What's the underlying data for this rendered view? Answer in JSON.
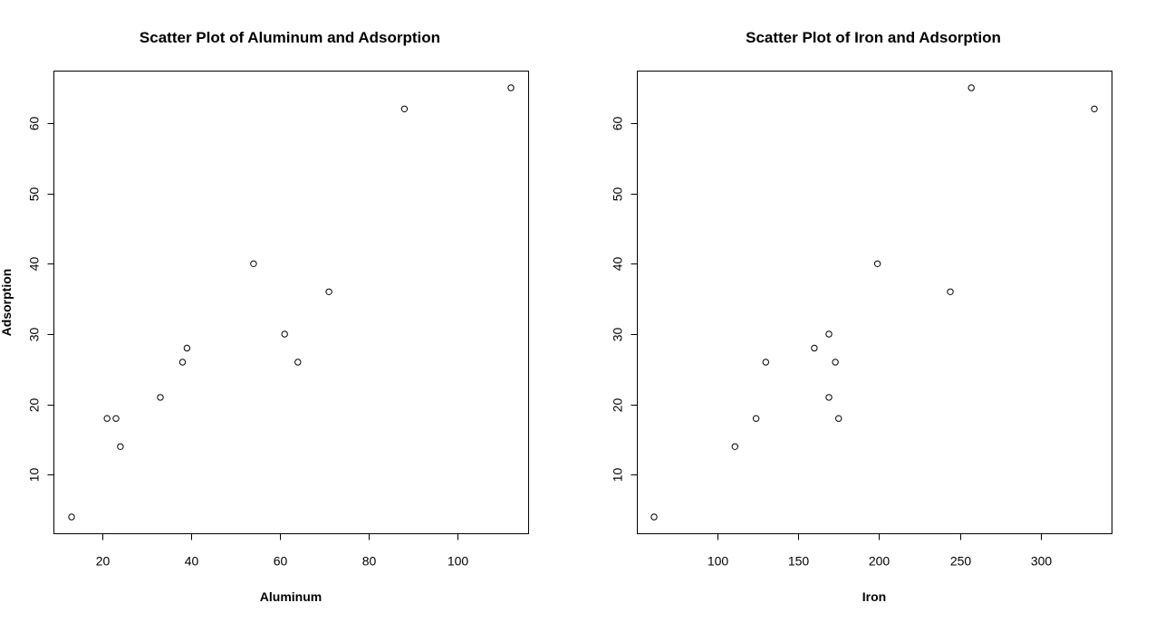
{
  "chart_data": [
    {
      "type": "scatter",
      "title": "Scatter Plot of Aluminum and Adsorption",
      "xlabel": "Aluminum",
      "ylabel": "Adsorption",
      "xlim": [
        13,
        112
      ],
      "ylim": [
        4,
        65
      ],
      "xticks": [
        20,
        40,
        60,
        80,
        100
      ],
      "yticks": [
        10,
        20,
        30,
        40,
        50,
        60
      ],
      "grid": false,
      "x": [
        13,
        21,
        23,
        24,
        33,
        38,
        39,
        54,
        61,
        64,
        71,
        88,
        112
      ],
      "y": [
        4,
        18,
        18,
        14,
        21,
        26,
        28,
        40,
        30,
        26,
        36,
        62,
        65
      ]
    },
    {
      "type": "scatter",
      "title": "Scatter Plot of Iron and Adsorption",
      "xlabel": "Iron",
      "ylabel": "",
      "xlim": [
        61,
        333
      ],
      "ylim": [
        4,
        65
      ],
      "xticks": [
        100,
        150,
        200,
        250,
        300
      ],
      "yticks": [
        10,
        20,
        30,
        40,
        50,
        60
      ],
      "grid": false,
      "x": [
        61,
        111,
        124,
        130,
        160,
        169,
        169,
        173,
        175,
        199,
        244,
        257,
        333
      ],
      "y": [
        4,
        14,
        18,
        26,
        28,
        30,
        21,
        26,
        18,
        40,
        36,
        65,
        62
      ]
    }
  ]
}
